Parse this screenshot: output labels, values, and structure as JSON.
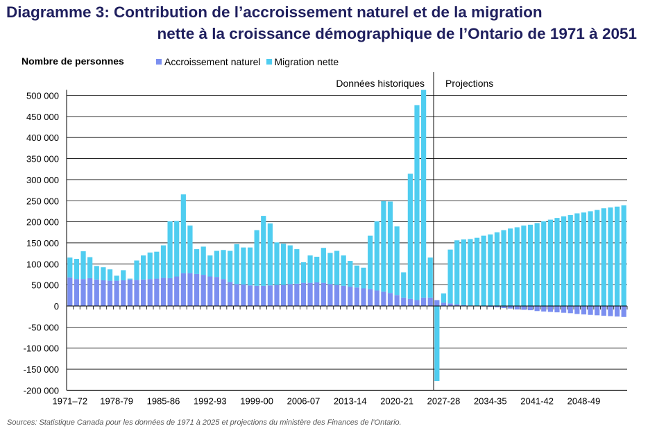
{
  "title_line1": "Diagramme 3: Contribution de l’accroissement naturel et de la migration",
  "title_line2": "nette à la croissance démographique de l’Ontario de 1971 à 2051",
  "source": "Sources: Statistique Canada pour les données de 1971 à 2025 et projections du ministère des Finances de l’Ontario.",
  "colors": {
    "natural": "#7b8ff0",
    "migration": "#4fcdf0",
    "grid": "#000000"
  },
  "chart_data": {
    "type": "bar",
    "stacked": true,
    "title": "Diagramme 3: Contribution de l’accroissement naturel et de la migration nette à la croissance démographique de l’Ontario de 1971 à 2051",
    "ylabel": "Nombre de personnes",
    "ylim": [
      -200000,
      500000
    ],
    "yticks": [
      -200000,
      -150000,
      -100000,
      -50000,
      0,
      50000,
      100000,
      150000,
      200000,
      250000,
      300000,
      350000,
      400000,
      450000,
      500000
    ],
    "ytick_labels": [
      "-200 000",
      "-150 000",
      "-100 000",
      "-50 000",
      "0",
      "50 000",
      "100 000",
      "150 000",
      "200 000",
      "250 000",
      "300 000",
      "350 000",
      "400 000",
      "450 000",
      "500 000"
    ],
    "grid": true,
    "legend_position": "top",
    "xtick_labels": [
      "1971–72",
      "1978-79",
      "1985-86",
      "1992-93",
      "1999-00",
      "2006-07",
      "2013-14",
      "2020-21",
      "2027-28",
      "2034-35",
      "2041-42",
      "2048-49"
    ],
    "xtick_every": 7,
    "annotations": [
      "Données historiques",
      "Projections"
    ],
    "divider_after_index": 54,
    "series": [
      {
        "name": "Accroissement naturel",
        "values": [
          68000,
          64000,
          64000,
          66000,
          63000,
          61000,
          60000,
          60000,
          61000,
          63000,
          62000,
          63000,
          64000,
          65000,
          67000,
          66000,
          70000,
          78000,
          78000,
          76000,
          74000,
          70000,
          69000,
          64000,
          57000,
          52000,
          51000,
          49000,
          48000,
          48000,
          49000,
          50000,
          50000,
          52000,
          53000,
          55000,
          55000,
          56000,
          55000,
          52000,
          50000,
          48000,
          46000,
          44000,
          42000,
          40000,
          37000,
          34000,
          31000,
          26000,
          20000,
          17000,
          14000,
          20000,
          20000,
          14000,
          8000,
          6000,
          4000,
          2000,
          1000,
          0,
          -1000,
          -2000,
          -3000,
          -5000,
          -6000,
          -8000,
          -9000,
          -10000,
          -12000,
          -13000,
          -14000,
          -15000,
          -16000,
          -17000,
          -19000,
          -20000,
          -21000,
          -22000,
          -23000,
          -24000,
          -25000,
          -26000
        ]
      },
      {
        "name": "Migration nette",
        "values": [
          47000,
          48000,
          66000,
          50000,
          32000,
          31000,
          27000,
          12000,
          24000,
          2000,
          46000,
          57000,
          63000,
          64000,
          77000,
          135000,
          132000,
          187000,
          113000,
          59000,
          67000,
          50000,
          62000,
          69000,
          74000,
          95000,
          88000,
          90000,
          132000,
          166000,
          147000,
          101000,
          98000,
          92000,
          82000,
          49000,
          65000,
          61000,
          83000,
          74000,
          81000,
          72000,
          61000,
          52000,
          49000,
          127000,
          164000,
          215000,
          217000,
          163000,
          60000,
          297000,
          463000,
          493000,
          95000,
          -178000,
          22000,
          128000,
          152000,
          156000,
          158000,
          162000,
          167000,
          170000,
          175000,
          180000,
          184000,
          187000,
          191000,
          193000,
          197000,
          201000,
          205000,
          209000,
          213000,
          216000,
          220000,
          222000,
          225000,
          228000,
          232000,
          234000,
          236000,
          239000
        ]
      }
    ]
  }
}
